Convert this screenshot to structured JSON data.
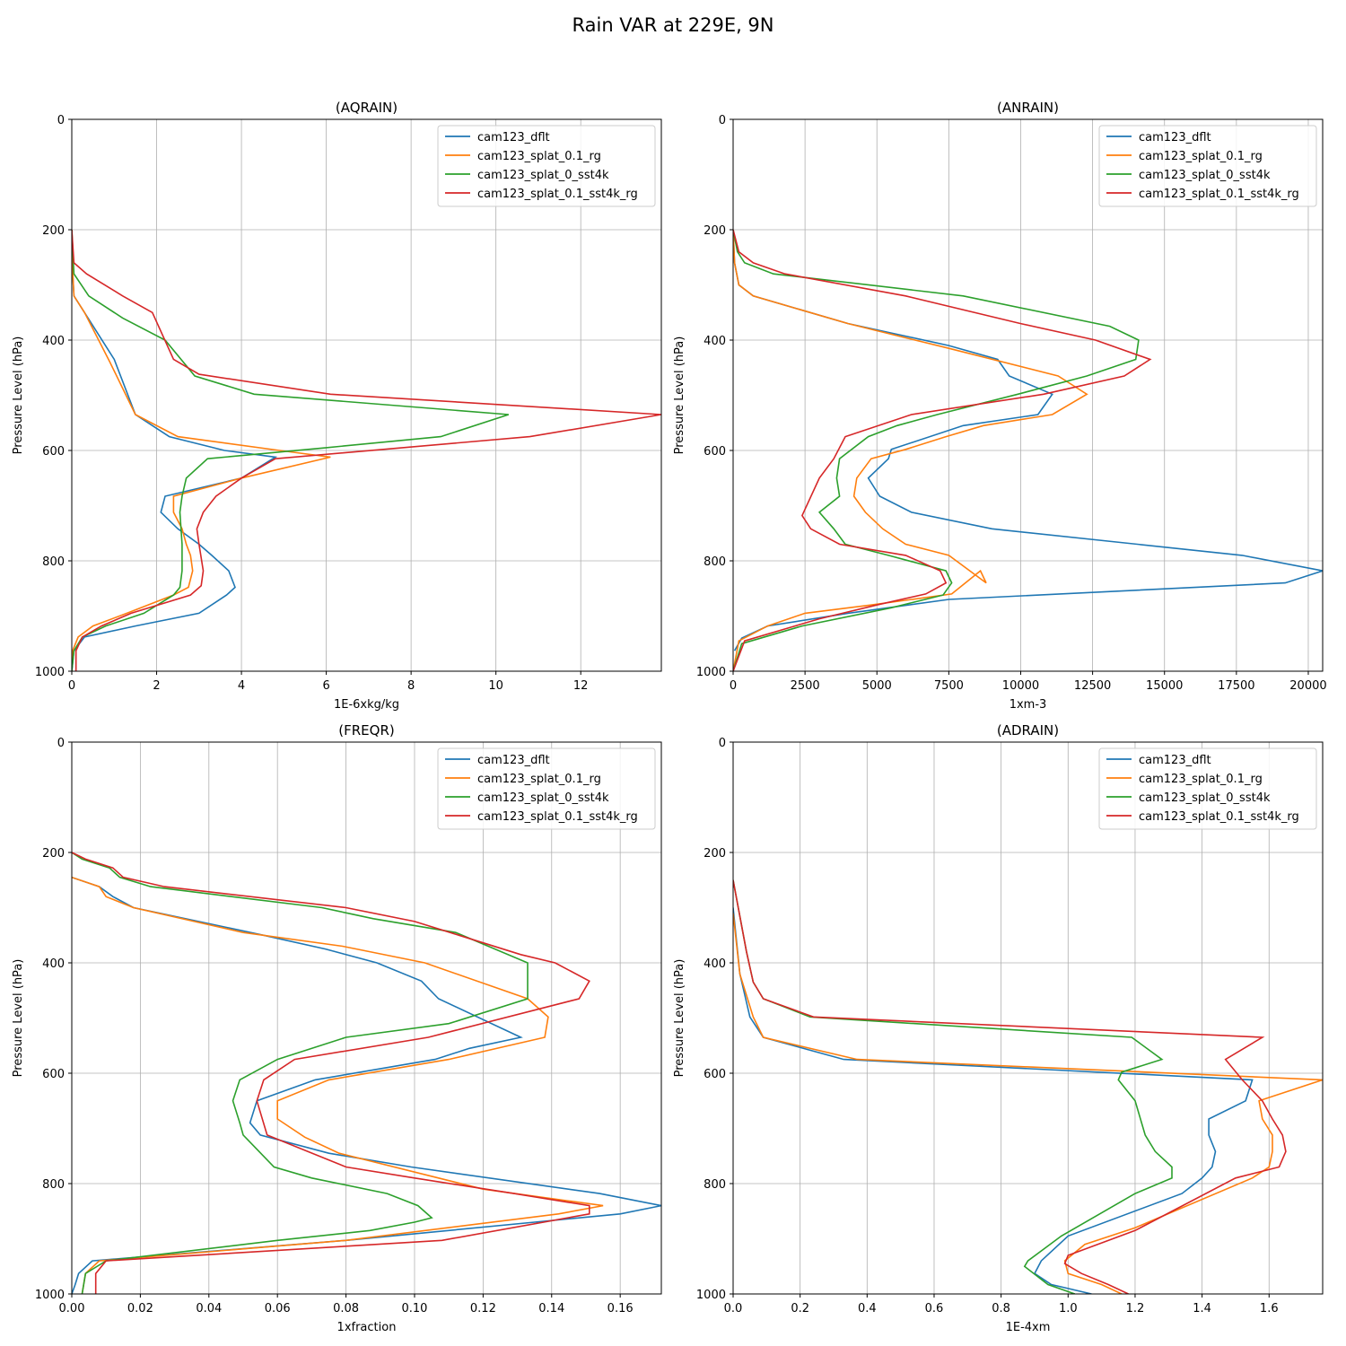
{
  "figure": {
    "title": "Rain VAR at 229E, 9N"
  },
  "legend": {
    "labels": [
      "cam123_dflt",
      "cam123_splat_0.1_rg",
      "cam123_splat_0_sst4k",
      "cam123_splat_0.1_sst4k_rg"
    ],
    "colors": [
      "#1f77b4",
      "#ff7f0e",
      "#2ca02c",
      "#d62728"
    ],
    "placement": "top-right"
  },
  "chart_data": [
    {
      "type": "line",
      "title": "(AQRAIN)",
      "xlabel": "1E-6xkg/kg",
      "ylabel": "Pressure Level (hPa)",
      "xlim": [
        0,
        13.9
      ],
      "ylim": [
        1000,
        0
      ],
      "xticks": [
        0,
        2,
        4,
        6,
        8,
        10,
        12
      ],
      "xtick_labels": [
        "0",
        "2",
        "4",
        "6",
        "8",
        "10",
        "12"
      ],
      "yticks": [
        0,
        200,
        400,
        600,
        800,
        1000
      ],
      "ytick_labels": [
        "0",
        "200",
        "400",
        "600",
        "800",
        "1000"
      ],
      "grid": true,
      "series": [
        {
          "name": "cam123_dflt",
          "x": [
            0,
            0.01,
            0.05,
            0.3,
            1,
            1.5,
            2.3,
            3.6,
            4.8,
            4,
            2.2,
            2.1,
            2.5,
            3,
            3.3,
            3.7,
            3.85,
            3.65,
            3,
            1.5,
            0.3,
            0.05,
            0
          ],
          "y": [
            200,
            260,
            320,
            350,
            435,
            535,
            575,
            600,
            612,
            650,
            683,
            712,
            742,
            770,
            790,
            818,
            848,
            862,
            895,
            918,
            938,
            963,
            1000
          ]
        },
        {
          "name": "cam123_splat_0.1_rg",
          "x": [
            0,
            0.01,
            0.05,
            0.3,
            0.9,
            1.5,
            2.5,
            4.9,
            6.1,
            4,
            2.4,
            2.4,
            2.6,
            2.7,
            2.8,
            2.85,
            2.75,
            2.4,
            1.3,
            0.5,
            0.15,
            0.02,
            0
          ],
          "y": [
            200,
            260,
            320,
            350,
            440,
            535,
            575,
            600,
            612,
            650,
            683,
            712,
            742,
            770,
            790,
            818,
            848,
            862,
            895,
            918,
            938,
            963,
            1000
          ]
        },
        {
          "name": "cam123_splat_0_sst4k",
          "x": [
            0,
            0.05,
            0.4,
            1.2,
            2.2,
            2.9,
            4.3,
            10.3,
            8.7,
            6,
            3.2,
            2.7,
            2.6,
            2.55,
            2.6,
            2.6,
            2.55,
            2.4,
            1.7,
            0.8,
            0.25,
            0.05,
            0
          ],
          "y": [
            200,
            280,
            320,
            360,
            400,
            465,
            498,
            535,
            575,
            595,
            615,
            650,
            683,
            712,
            770,
            818,
            848,
            862,
            895,
            918,
            938,
            963,
            1000
          ]
        },
        {
          "name": "cam123_splat_0.1_sst4k_rg",
          "x": [
            0,
            0.05,
            0.35,
            1.2,
            1.9,
            2.4,
            3,
            6.1,
            13.9,
            10.8,
            4.8,
            4,
            3.4,
            3.1,
            2.95,
            3,
            3.1,
            3.05,
            2.8,
            1.4,
            0.7,
            0.25,
            0.1,
            0.1
          ],
          "y": [
            200,
            260,
            280,
            320,
            350,
            435,
            462,
            498,
            535,
            575,
            615,
            650,
            683,
            712,
            742,
            770,
            818,
            845,
            862,
            895,
            918,
            938,
            963,
            1000
          ]
        }
      ]
    },
    {
      "type": "line",
      "title": "(ANRAIN)",
      "xlabel": "1xm-3",
      "ylabel": "Pressure Level (hPa)",
      "xlim": [
        0,
        20500
      ],
      "ylim": [
        1000,
        0
      ],
      "xticks": [
        0,
        2500,
        5000,
        7500,
        10000,
        12500,
        15000,
        17500,
        20000
      ],
      "xtick_labels": [
        "0",
        "2500",
        "5000",
        "7500",
        "10000",
        "12500",
        "15000",
        "17500",
        "20000"
      ],
      "yticks": [
        0,
        200,
        400,
        600,
        800,
        1000
      ],
      "ytick_labels": [
        "0",
        "200",
        "400",
        "600",
        "800",
        "1000"
      ],
      "grid": true,
      "series": [
        {
          "name": "cam123_dflt",
          "x": [
            0,
            50,
            200,
            700,
            4000,
            7500,
            9200,
            9600,
            11100,
            10600,
            8000,
            5500,
            5400,
            4700,
            5100,
            6200,
            9000,
            17700,
            20500,
            19200,
            7500,
            4000,
            1200,
            300,
            50
          ],
          "y": [
            200,
            260,
            300,
            320,
            370,
            410,
            435,
            465,
            498,
            535,
            555,
            598,
            615,
            650,
            683,
            712,
            742,
            790,
            818,
            840,
            870,
            895,
            918,
            940,
            963
          ]
        },
        {
          "name": "cam123_splat_0.1_rg",
          "x": [
            0,
            50,
            200,
            700,
            4000,
            7500,
            11300,
            12300,
            11100,
            8700,
            7400,
            6000,
            4800,
            4300,
            4200,
            4600,
            5200,
            6000,
            7500,
            8800,
            8600,
            7600,
            4800,
            2500,
            1200,
            200,
            0
          ],
          "y": [
            200,
            260,
            300,
            320,
            370,
            415,
            465,
            498,
            535,
            555,
            575,
            598,
            615,
            650,
            683,
            712,
            742,
            770,
            790,
            840,
            818,
            860,
            880,
            895,
            918,
            945,
            1000
          ]
        },
        {
          "name": "cam123_splat_0_sst4k",
          "x": [
            0,
            150,
            400,
            1400,
            8000,
            13100,
            14100,
            14000,
            12300,
            9900,
            7100,
            5700,
            4700,
            3700,
            3600,
            3700,
            3000,
            3500,
            3900,
            5400,
            7400,
            7600,
            7300,
            5500,
            2400,
            300,
            0
          ],
          "y": [
            200,
            240,
            260,
            280,
            320,
            375,
            400,
            435,
            465,
            498,
            535,
            555,
            575,
            615,
            650,
            683,
            712,
            742,
            770,
            790,
            818,
            840,
            862,
            885,
            918,
            950,
            1000
          ]
        },
        {
          "name": "cam123_splat_0.1_sst4k_rg",
          "x": [
            0,
            200,
            700,
            1800,
            6000,
            10000,
            12600,
            14500,
            13600,
            10800,
            6200,
            3900,
            3500,
            3000,
            2400,
            2700,
            3700,
            6000,
            7200,
            7400,
            6700,
            5000,
            3000,
            400,
            0
          ],
          "y": [
            200,
            240,
            260,
            280,
            320,
            370,
            400,
            435,
            465,
            498,
            535,
            575,
            615,
            650,
            718,
            742,
            770,
            790,
            818,
            840,
            860,
            880,
            905,
            945,
            1000
          ]
        }
      ]
    },
    {
      "type": "line",
      "title": "(FREQR)",
      "xlabel": "1xfraction",
      "ylabel": "Pressure Level (hPa)",
      "xlim": [
        0,
        0.172
      ],
      "ylim": [
        1000,
        0
      ],
      "xticks": [
        0,
        0.02,
        0.04,
        0.06,
        0.08,
        0.1,
        0.12,
        0.14,
        0.16
      ],
      "xtick_labels": [
        "0.00",
        "0.02",
        "0.04",
        "0.06",
        "0.08",
        "0.10",
        "0.12",
        "0.14",
        "0.16"
      ],
      "yticks": [
        0,
        200,
        400,
        600,
        800,
        1000
      ],
      "ytick_labels": [
        "0",
        "200",
        "400",
        "600",
        "800",
        "1000"
      ],
      "grid": true,
      "series": [
        {
          "name": "cam123_dflt",
          "x": [
            0,
            0.008,
            0.012,
            0.018,
            0.056,
            0.074,
            0.089,
            0.102,
            0.107,
            0.131,
            0.116,
            0.106,
            0.071,
            0.054,
            0.052,
            0.055,
            0.075,
            0.099,
            0.154,
            0.172,
            0.16,
            0.08,
            0.006,
            0.002,
            0.001,
            0.0
          ],
          "y": [
            245,
            262,
            280,
            300,
            350,
            375,
            400,
            433,
            465,
            535,
            555,
            575,
            612,
            650,
            690,
            712,
            745,
            770,
            818,
            840,
            855,
            903,
            940,
            963,
            983,
            1000
          ]
        },
        {
          "name": "cam123_splat_0.1_rg",
          "x": [
            0,
            0.008,
            0.01,
            0.018,
            0.05,
            0.079,
            0.103,
            0.133,
            0.139,
            0.138,
            0.11,
            0.075,
            0.06,
            0.06,
            0.068,
            0.078,
            0.12,
            0.155,
            0.142,
            0.08,
            0.008,
            0.004,
            0.003
          ],
          "y": [
            245,
            262,
            280,
            300,
            345,
            370,
            400,
            465,
            498,
            535,
            575,
            612,
            650,
            683,
            716,
            745,
            810,
            840,
            855,
            903,
            940,
            963,
            1000
          ]
        },
        {
          "name": "cam123_splat_0_sst4k",
          "x": [
            0,
            0.003,
            0.011,
            0.014,
            0.023,
            0.073,
            0.088,
            0.112,
            0.133,
            0.133,
            0.11,
            0.08,
            0.06,
            0.049,
            0.047,
            0.049,
            0.05,
            0.059,
            0.07,
            0.092,
            0.101,
            0.105,
            0.1,
            0.087,
            0.06,
            0.01,
            0.004,
            0.003
          ],
          "y": [
            200,
            212,
            228,
            245,
            262,
            300,
            320,
            345,
            400,
            465,
            510,
            535,
            575,
            612,
            650,
            690,
            712,
            770,
            790,
            818,
            840,
            862,
            870,
            885,
            903,
            940,
            963,
            1000
          ]
        },
        {
          "name": "cam123_splat_0.1_sst4k_rg",
          "x": [
            0,
            0.004,
            0.012,
            0.015,
            0.027,
            0.08,
            0.1,
            0.113,
            0.131,
            0.141,
            0.151,
            0.148,
            0.104,
            0.065,
            0.056,
            0.054,
            0.057,
            0.08,
            0.1,
            0.129,
            0.151,
            0.151,
            0.108,
            0.01,
            0.007,
            0.007
          ],
          "y": [
            200,
            212,
            228,
            245,
            262,
            300,
            325,
            350,
            385,
            400,
            433,
            465,
            535,
            575,
            612,
            650,
            712,
            770,
            790,
            818,
            840,
            855,
            903,
            940,
            963,
            1000
          ]
        }
      ]
    },
    {
      "type": "line",
      "title": "(ADRAIN)",
      "xlabel": "1E-4xm",
      "ylabel": "Pressure Level (hPa)",
      "xlim": [
        0,
        1.76
      ],
      "ylim": [
        1000,
        0
      ],
      "xticks": [
        0,
        0.2,
        0.4,
        0.6,
        0.8,
        1.0,
        1.2,
        1.4,
        1.6
      ],
      "xtick_labels": [
        "0.0",
        "0.2",
        "0.4",
        "0.6",
        "0.8",
        "1.0",
        "1.2",
        "1.4",
        "1.6"
      ],
      "yticks": [
        0,
        200,
        400,
        600,
        800,
        1000
      ],
      "ytick_labels": [
        "0",
        "200",
        "400",
        "600",
        "800",
        "1000"
      ],
      "grid": true,
      "series": [
        {
          "name": "cam123_dflt",
          "x": [
            0,
            0.02,
            0.05,
            0.09,
            0.33,
            1.55,
            1.53,
            1.42,
            1.42,
            1.44,
            1.43,
            1.4,
            1.34,
            1.0,
            0.92,
            0.9,
            0.95,
            1.07
          ],
          "y": [
            300,
            420,
            498,
            535,
            575,
            612,
            650,
            683,
            712,
            742,
            770,
            790,
            818,
            895,
            940,
            963,
            983,
            1000
          ]
        },
        {
          "name": "cam123_splat_0.1_rg",
          "x": [
            0,
            0.02,
            0.06,
            0.09,
            0.37,
            1.76,
            1.57,
            1.58,
            1.61,
            1.61,
            1.6,
            1.55,
            1.2,
            1.05,
            0.99,
            1.0,
            1.1,
            1.16
          ],
          "y": [
            310,
            420,
            498,
            535,
            575,
            612,
            650,
            683,
            712,
            742,
            770,
            790,
            880,
            910,
            940,
            963,
            983,
            1000
          ]
        },
        {
          "name": "cam123_splat_0_sst4k",
          "x": [
            0,
            0.04,
            0.06,
            0.09,
            0.23,
            1.19,
            1.28,
            1.16,
            1.15,
            1.2,
            1.23,
            1.26,
            1.31,
            1.31,
            1.2,
            0.98,
            0.88,
            0.87,
            0.94,
            1.02
          ],
          "y": [
            250,
            380,
            435,
            465,
            498,
            535,
            575,
            598,
            612,
            650,
            712,
            742,
            770,
            790,
            818,
            895,
            940,
            950,
            983,
            1000
          ]
        },
        {
          "name": "cam123_splat_0.1_sst4k_rg",
          "x": [
            0,
            0.04,
            0.06,
            0.09,
            0.24,
            1.58,
            1.47,
            1.52,
            1.58,
            1.61,
            1.64,
            1.65,
            1.63,
            1.5,
            1.2,
            1.0,
            0.99,
            1.04,
            1.12,
            1.18
          ],
          "y": [
            250,
            380,
            435,
            465,
            498,
            535,
            575,
            612,
            650,
            683,
            712,
            742,
            770,
            790,
            885,
            930,
            945,
            963,
            983,
            1000
          ]
        }
      ]
    }
  ]
}
